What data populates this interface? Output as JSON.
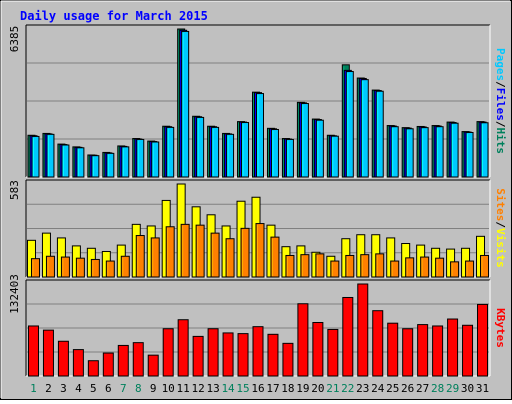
{
  "chart_data": [
    {
      "type": "bar",
      "panel": "top",
      "title": "Daily usage for March 2015",
      "max_label": "6385",
      "ylim": [
        0,
        6385
      ],
      "categories": [
        "1",
        "2",
        "3",
        "4",
        "5",
        "6",
        "7",
        "8",
        "9",
        "10",
        "11",
        "12",
        "13",
        "14",
        "15",
        "16",
        "17",
        "18",
        "19",
        "20",
        "21",
        "22",
        "23",
        "24",
        "25",
        "26",
        "27",
        "28",
        "29",
        "30",
        "31"
      ],
      "series": [
        {
          "name": "Hits",
          "color": "#00805c",
          "values": [
            1800,
            1880,
            1420,
            1300,
            950,
            1060,
            1340,
            1660,
            1550,
            2190,
            6385,
            2620,
            2190,
            1880,
            2390,
            3660,
            2100,
            1660,
            3220,
            2500,
            1800,
            4840,
            4270,
            3750,
            2220,
            2130,
            2180,
            2220,
            2370,
            1960,
            2390
          ]
        },
        {
          "name": "Files",
          "color": "#0000ff",
          "values": [
            1780,
            1860,
            1400,
            1280,
            940,
            1040,
            1320,
            1640,
            1530,
            2170,
            6330,
            2600,
            2170,
            1860,
            2370,
            3640,
            2080,
            1640,
            3200,
            2480,
            1780,
            4600,
            4250,
            3730,
            2200,
            2110,
            2160,
            2200,
            2350,
            1940,
            2370
          ]
        },
        {
          "name": "Pages",
          "color": "#00c8ff",
          "values": [
            1750,
            1840,
            1380,
            1260,
            920,
            1020,
            1300,
            1620,
            1510,
            2140,
            6280,
            2570,
            2140,
            1840,
            2350,
            3600,
            2050,
            1620,
            3170,
            2450,
            1760,
            4550,
            4200,
            3700,
            2170,
            2080,
            2130,
            2170,
            2320,
            1920,
            2340
          ]
        }
      ],
      "legend": [
        {
          "text": "Pages",
          "color": "#00c8ff"
        },
        {
          "text": "/",
          "color": "#000000"
        },
        {
          "text": "Files",
          "color": "#0000ff"
        },
        {
          "text": "/",
          "color": "#000000"
        },
        {
          "text": "Hits",
          "color": "#00805c"
        }
      ]
    },
    {
      "type": "bar",
      "panel": "middle",
      "max_label": "583",
      "ylim": [
        0,
        583
      ],
      "categories": [
        "1",
        "2",
        "3",
        "4",
        "5",
        "6",
        "7",
        "8",
        "9",
        "10",
        "11",
        "12",
        "13",
        "14",
        "15",
        "16",
        "17",
        "18",
        "19",
        "20",
        "21",
        "22",
        "23",
        "24",
        "25",
        "26",
        "27",
        "28",
        "29",
        "30",
        "31"
      ],
      "series": [
        {
          "name": "Visits",
          "color": "#ffff00",
          "values": [
            230,
            275,
            245,
            195,
            180,
            160,
            200,
            330,
            320,
            480,
            583,
            440,
            390,
            320,
            475,
            500,
            325,
            190,
            195,
            155,
            130,
            240,
            265,
            265,
            245,
            210,
            200,
            180,
            175,
            180,
            255
          ]
        },
        {
          "name": "Sites",
          "color": "#ff8000",
          "values": [
            115,
            130,
            125,
            118,
            110,
            100,
            130,
            260,
            245,
            315,
            330,
            325,
            275,
            240,
            305,
            335,
            250,
            135,
            140,
            145,
            100,
            135,
            140,
            145,
            100,
            120,
            125,
            118,
            95,
            100,
            135
          ]
        }
      ],
      "legend": [
        {
          "text": "Sites",
          "color": "#ff8000"
        },
        {
          "text": "/",
          "color": "#000000"
        },
        {
          "text": "Visits",
          "color": "#ffff00"
        }
      ]
    },
    {
      "type": "bar",
      "panel": "bottom",
      "max_label": "132403",
      "ylim": [
        0,
        132403
      ],
      "categories": [
        "1",
        "2",
        "3",
        "4",
        "5",
        "6",
        "7",
        "8",
        "9",
        "10",
        "11",
        "12",
        "13",
        "14",
        "15",
        "16",
        "17",
        "18",
        "19",
        "20",
        "21",
        "22",
        "23",
        "24",
        "25",
        "26",
        "27",
        "28",
        "29",
        "30",
        "31"
      ],
      "series": [
        {
          "name": "KBytes",
          "color": "#ff0000",
          "values": [
            72000,
            66000,
            50000,
            38000,
            22000,
            33000,
            44000,
            48000,
            30000,
            68000,
            81000,
            57000,
            68000,
            62000,
            61000,
            71000,
            60000,
            47000,
            104000,
            77000,
            67000,
            113000,
            132403,
            94000,
            76000,
            68000,
            74000,
            72000,
            82000,
            73000,
            103000
          ]
        }
      ],
      "legend": [
        {
          "text": "KBytes",
          "color": "#ff0000"
        }
      ]
    }
  ],
  "x_axis": {
    "labels": [
      "1",
      "2",
      "3",
      "4",
      "5",
      "6",
      "7",
      "8",
      "9",
      "10",
      "11",
      "12",
      "13",
      "14",
      "15",
      "16",
      "17",
      "18",
      "19",
      "20",
      "21",
      "22",
      "23",
      "24",
      "25",
      "26",
      "27",
      "28",
      "29",
      "30",
      "31"
    ],
    "weekend_days": [
      "1",
      "7",
      "8",
      "14",
      "15",
      "21",
      "22",
      "28",
      "29"
    ],
    "weekend_color": "#00805c",
    "weekday_color": "#000000"
  }
}
